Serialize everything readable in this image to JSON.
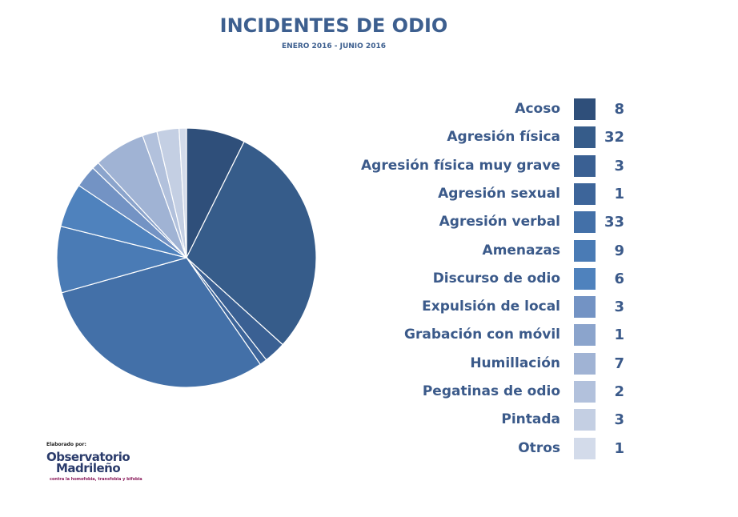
{
  "chart_data": {
    "type": "pie",
    "title": "INCIDENTES DE ODIO",
    "subtitle": "ENERO 2016 - JUNIO 2016",
    "categories": [
      "Acoso",
      "Agresión física",
      "Agresión física muy grave",
      "Agresión sexual",
      "Agresión verbal",
      "Amenazas",
      "Discurso de odio",
      "Expulsión de local",
      "Grabación con móvil",
      "Humillación",
      "Pegatinas de odio",
      "Pintada",
      "Otros"
    ],
    "values": [
      8,
      32,
      3,
      1,
      33,
      9,
      6,
      3,
      1,
      7,
      2,
      3,
      1
    ],
    "colors": [
      "#2f4f7a",
      "#365c8a",
      "#3a6093",
      "#3d659a",
      "#4370a8",
      "#4a7bb5",
      "#4f82bd",
      "#7393c4",
      "#8ba4cc",
      "#a0b3d4",
      "#b2c1dc",
      "#c4cfe3",
      "#d3dbea"
    ],
    "legend": "right"
  },
  "logo": {
    "by": "Elaborado por:",
    "name_line1": "Observatorio",
    "name_line2": "Madrileño",
    "tagline": "contra la homofobia, transfobia y bifobia"
  }
}
